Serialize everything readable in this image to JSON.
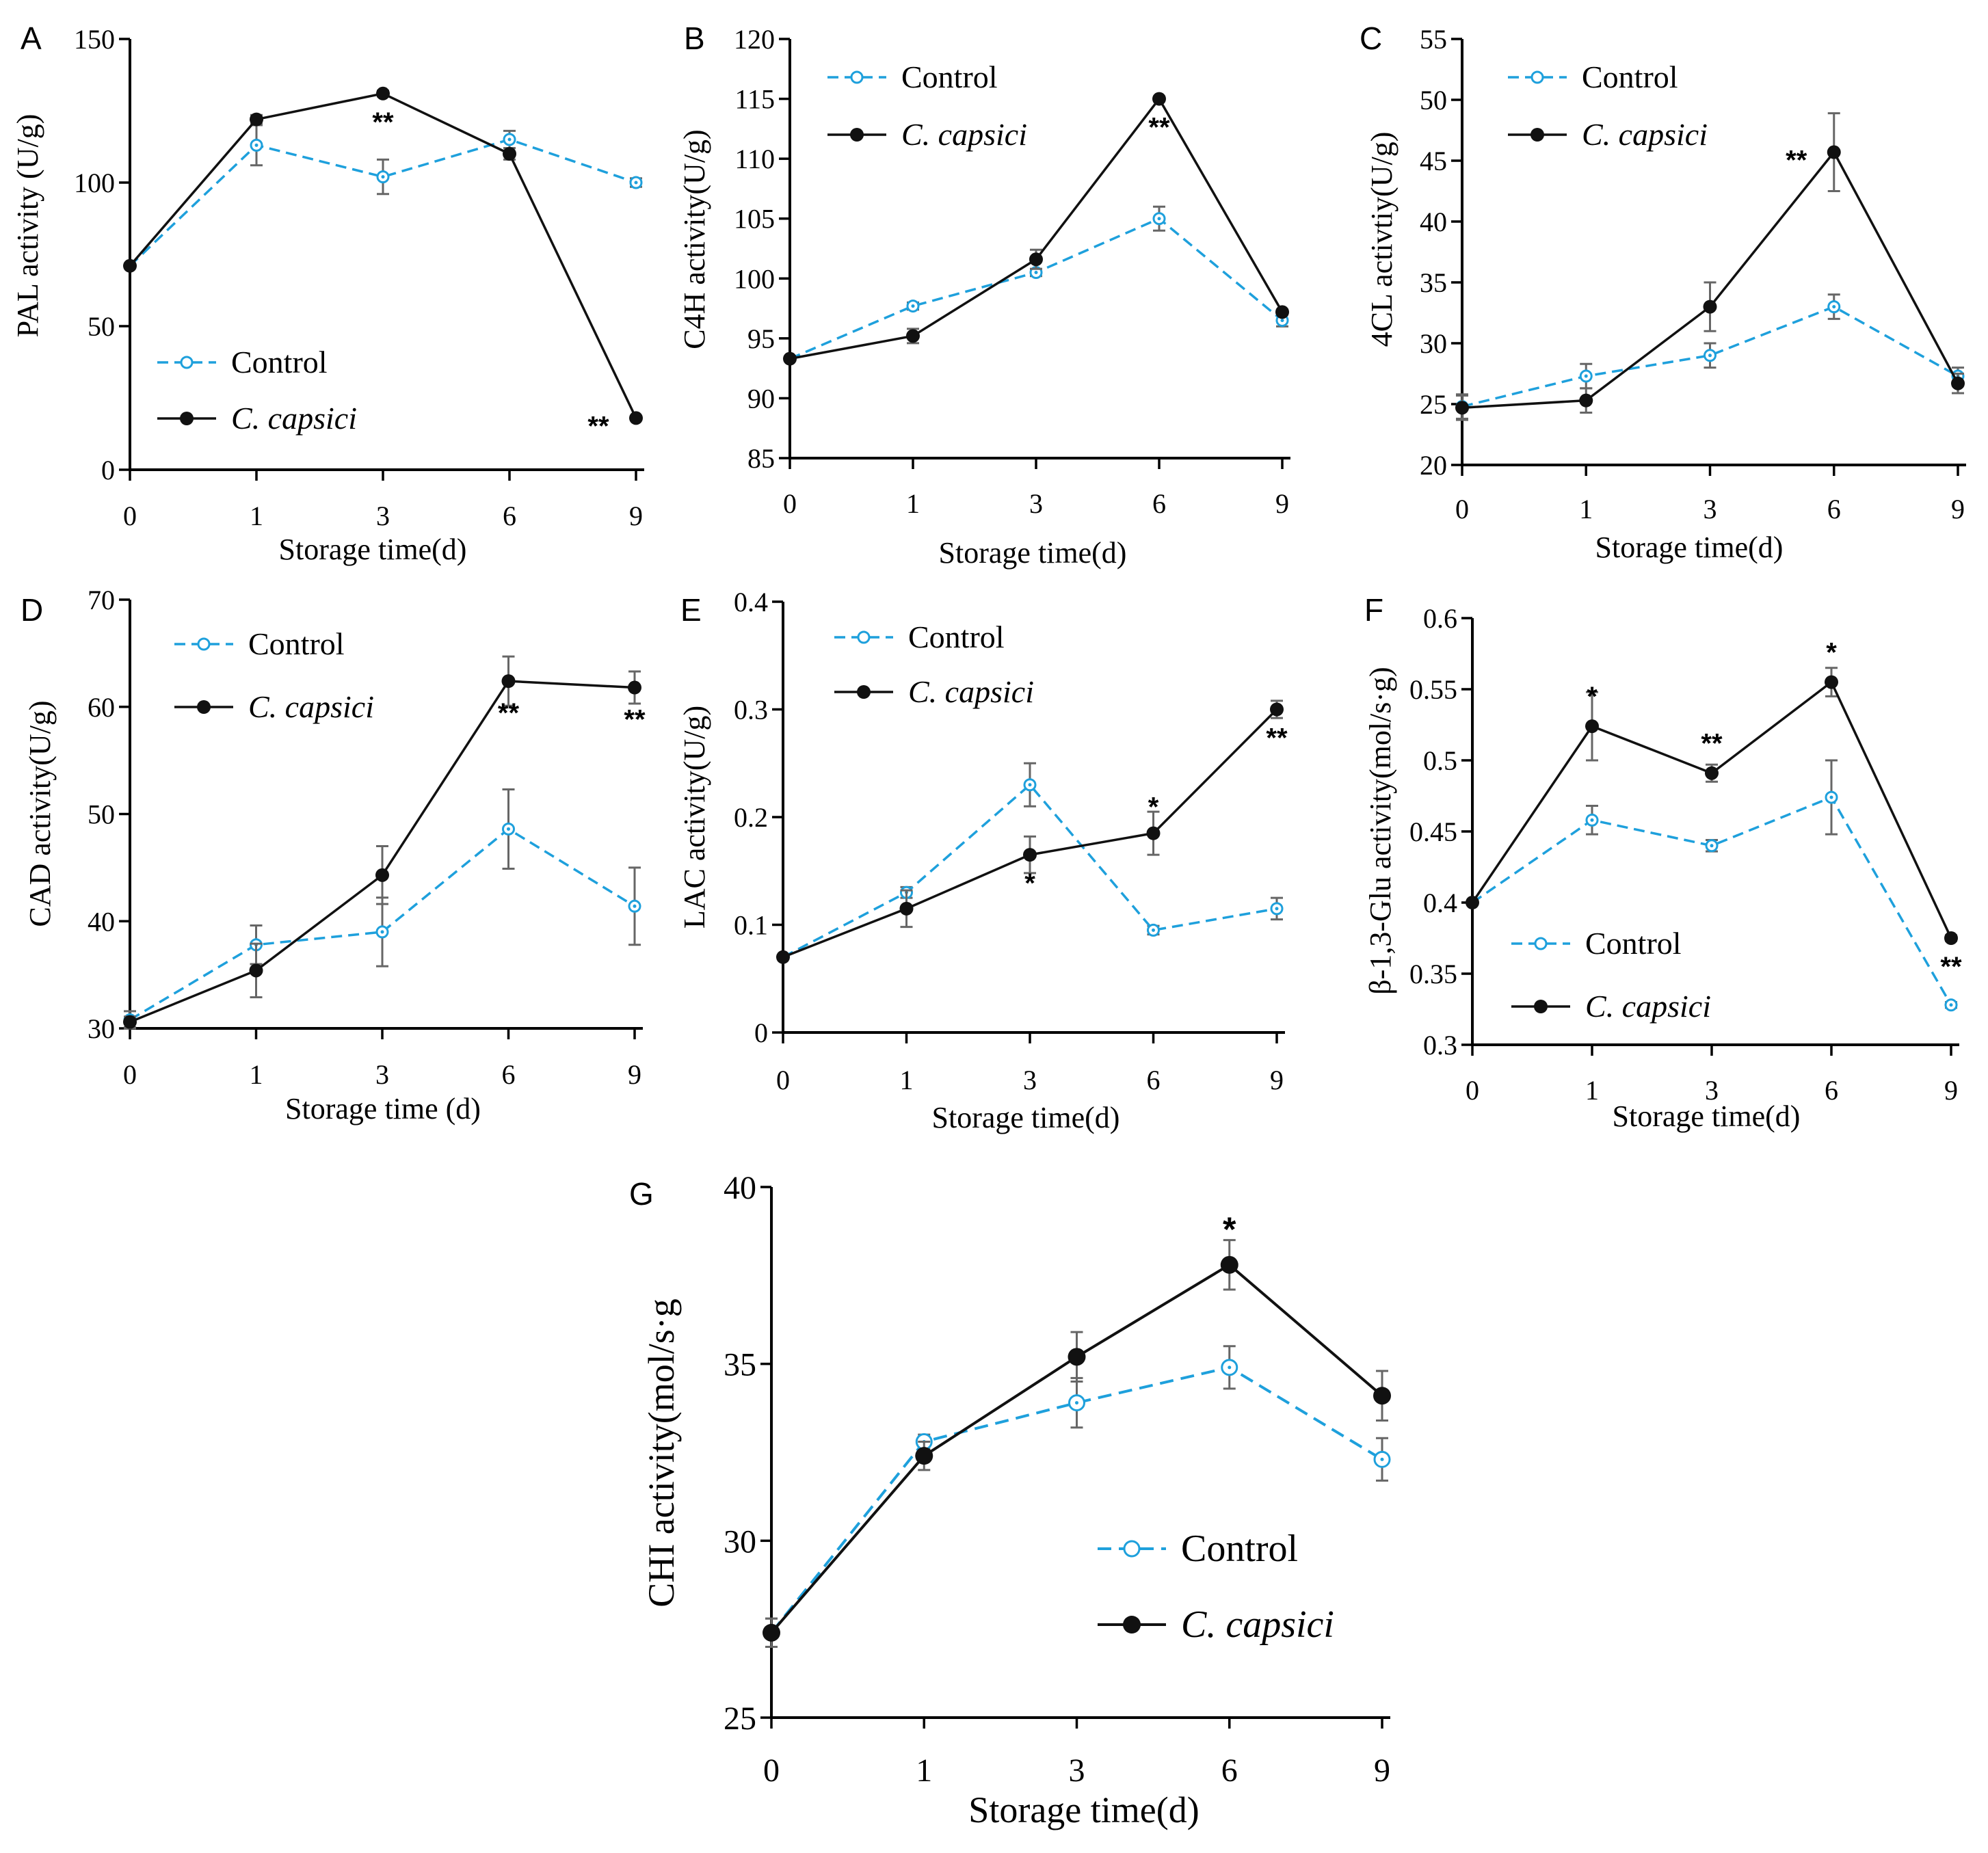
{
  "colors": {
    "control": "#1ea0dc",
    "treated": "#111111",
    "errorbar": "#666666",
    "axis": "#000000"
  },
  "legend": {
    "control": "Control",
    "treated": "C. capsici"
  },
  "chart_data": [
    {
      "panel": "A",
      "type": "line",
      "title": "",
      "categories": [
        "0",
        "1",
        "3",
        "6",
        "9"
      ],
      "xlabel": "Storage time(d)",
      "ylabel": "PAL activity (U/g)",
      "ylim": [
        0,
        150
      ],
      "yticks": [
        0,
        50,
        100,
        150
      ],
      "ytick_labels": [
        "0",
        "50",
        "100",
        "150"
      ],
      "legend_position": "bottom-left",
      "series": [
        {
          "name": "Control",
          "values": [
            71,
            113,
            102,
            115,
            100
          ],
          "errors": [
            0,
            7,
            6,
            3,
            1.5
          ]
        },
        {
          "name": "C. capsici",
          "values": [
            71,
            122,
            131,
            110,
            18
          ],
          "errors": [
            0,
            1.5,
            1,
            2,
            0.5
          ]
        }
      ],
      "significance": [
        {
          "index": 2,
          "label": "**",
          "position": "below"
        },
        {
          "index": 4,
          "label": "**",
          "position": "left"
        }
      ]
    },
    {
      "panel": "B",
      "type": "line",
      "title": "",
      "categories": [
        "0",
        "1",
        "3",
        "6",
        "9"
      ],
      "xlabel": "Storage time(d)",
      "ylabel": "C4H activity(U/g)",
      "ylim": [
        85,
        120
      ],
      "yticks": [
        85,
        90,
        95,
        100,
        105,
        110,
        115,
        120
      ],
      "ytick_labels": [
        "85",
        "90",
        "95",
        "100",
        "105",
        "110",
        "115",
        "120"
      ],
      "legend_position": "top-left",
      "series": [
        {
          "name": "Control",
          "values": [
            93.3,
            97.7,
            100.5,
            105,
            96.5
          ],
          "errors": [
            0,
            0.3,
            0.3,
            1,
            0.5
          ]
        },
        {
          "name": "C. capsici",
          "values": [
            93.3,
            95.2,
            101.6,
            115,
            97.2
          ],
          "errors": [
            0,
            0.6,
            0.8,
            0.2,
            0.2
          ]
        }
      ],
      "significance": [
        {
          "index": 3,
          "label": "**",
          "position": "below"
        }
      ]
    },
    {
      "panel": "C",
      "type": "line",
      "title": "",
      "categories": [
        "0",
        "1",
        "3",
        "6",
        "9"
      ],
      "xlabel": "Storage time(d)",
      "ylabel": "4CL activtiy(U/g)",
      "ylim": [
        20,
        55
      ],
      "yticks": [
        20,
        25,
        30,
        35,
        40,
        45,
        50,
        55
      ],
      "ytick_labels": [
        "20",
        "25",
        "30",
        "35",
        "40",
        "45",
        "50",
        "55"
      ],
      "legend_position": "top-left",
      "series": [
        {
          "name": "Control",
          "values": [
            24.8,
            27.3,
            29,
            33,
            27.3
          ],
          "errors": [
            1,
            1,
            1,
            1,
            0.7
          ]
        },
        {
          "name": "C. capsici",
          "values": [
            24.7,
            25.3,
            33,
            45.7,
            26.7
          ],
          "errors": [
            1,
            1,
            2,
            3.2,
            0.8
          ]
        }
      ],
      "significance": [
        {
          "index": 3,
          "label": "**",
          "position": "left"
        }
      ]
    },
    {
      "panel": "D",
      "type": "line",
      "title": "",
      "categories": [
        "0",
        "1",
        "3",
        "6",
        "9"
      ],
      "xlabel": "Storage time (d)",
      "ylabel": "CAD activity(U/g)",
      "ylim": [
        30,
        70
      ],
      "yticks": [
        30,
        40,
        50,
        60,
        70
      ],
      "ytick_labels": [
        "30",
        "40",
        "50",
        "60",
        "70"
      ],
      "legend_position": "top-left",
      "series": [
        {
          "name": "Control",
          "values": [
            30.8,
            37.8,
            39,
            48.6,
            41.4
          ],
          "errors": [
            0.8,
            1.8,
            3.2,
            3.7,
            3.6
          ]
        },
        {
          "name": "C. capsici",
          "values": [
            30.6,
            35.4,
            44.3,
            62.4,
            61.8
          ],
          "errors": [
            0.5,
            2.5,
            2.7,
            2.3,
            1.5
          ]
        }
      ],
      "significance": [
        {
          "index": 3,
          "label": "**",
          "position": "below"
        },
        {
          "index": 4,
          "label": "**",
          "position": "below"
        }
      ]
    },
    {
      "panel": "E",
      "type": "line",
      "title": "",
      "categories": [
        "0",
        "1",
        "3",
        "6",
        "9"
      ],
      "xlabel": "Storage time(d)",
      "ylabel": "LAC activity(U/g)",
      "ylim": [
        0,
        0.4
      ],
      "yticks": [
        0,
        0.1,
        0.2,
        0.3,
        0.4
      ],
      "ytick_labels": [
        "0",
        "0.1",
        "0.2",
        "0.3",
        "0.4"
      ],
      "legend_position": "top-left",
      "series": [
        {
          "name": "Control",
          "values": [
            0.07,
            0.13,
            0.23,
            0.095,
            0.115
          ],
          "errors": [
            0,
            0.005,
            0.02,
            0.004,
            0.01
          ]
        },
        {
          "name": "C. capsici",
          "values": [
            0.07,
            0.115,
            0.165,
            0.185,
            0.3
          ],
          "errors": [
            0,
            0.017,
            0.017,
            0.02,
            0.008
          ]
        }
      ],
      "significance": [
        {
          "index": 2,
          "label": "*",
          "position": "below"
        },
        {
          "index": 3,
          "label": "*",
          "position": "above"
        },
        {
          "index": 4,
          "label": "**",
          "position": "below"
        }
      ]
    },
    {
      "panel": "F",
      "type": "line",
      "title": "",
      "categories": [
        "0",
        "1",
        "3",
        "6",
        "9"
      ],
      "xlabel": "Storage time(d)",
      "ylabel": "β-1,3-Glu activity(mol/s·g)",
      "ylim": [
        0.3,
        0.6
      ],
      "yticks": [
        0.3,
        0.35,
        0.4,
        0.45,
        0.5,
        0.55,
        0.6
      ],
      "ytick_labels": [
        "0.3",
        "0.35",
        "0.4",
        "0.45",
        "0.5",
        "0.55",
        "0.6"
      ],
      "legend_position": "bottom-left",
      "series": [
        {
          "name": "Control",
          "values": [
            0.4,
            0.458,
            0.44,
            0.474,
            0.328
          ],
          "errors": [
            0,
            0.01,
            0.004,
            0.026,
            0.002
          ]
        },
        {
          "name": "C. capsici",
          "values": [
            0.4,
            0.524,
            0.491,
            0.555,
            0.375
          ],
          "errors": [
            0,
            0.024,
            0.006,
            0.01,
            0.002
          ]
        }
      ],
      "significance": [
        {
          "index": 1,
          "label": "*",
          "position": "above"
        },
        {
          "index": 2,
          "label": "**",
          "position": "above"
        },
        {
          "index": 3,
          "label": "*",
          "position": "above"
        },
        {
          "index": 4,
          "label": "**",
          "position": "below"
        }
      ]
    },
    {
      "panel": "G",
      "type": "line",
      "title": "",
      "categories": [
        "0",
        "1",
        "3",
        "6",
        "9"
      ],
      "xlabel": "Storage time(d)",
      "ylabel": "CHI activity(mol/s·g",
      "ylim": [
        25,
        40
      ],
      "yticks": [
        25,
        30,
        35,
        40
      ],
      "ytick_labels": [
        "25",
        "30",
        "35",
        "40"
      ],
      "legend_position": "bottom-right",
      "series": [
        {
          "name": "Control",
          "values": [
            27.4,
            32.8,
            33.9,
            34.9,
            32.3
          ],
          "errors": [
            0.4,
            0.2,
            0.7,
            0.6,
            0.6
          ]
        },
        {
          "name": "C. capsici",
          "values": [
            27.4,
            32.4,
            35.2,
            37.8,
            34.1
          ],
          "errors": [
            0.4,
            0.4,
            0.7,
            0.7,
            0.7
          ]
        }
      ],
      "significance": [
        {
          "index": 3,
          "label": "*",
          "position": "above"
        }
      ]
    }
  ]
}
